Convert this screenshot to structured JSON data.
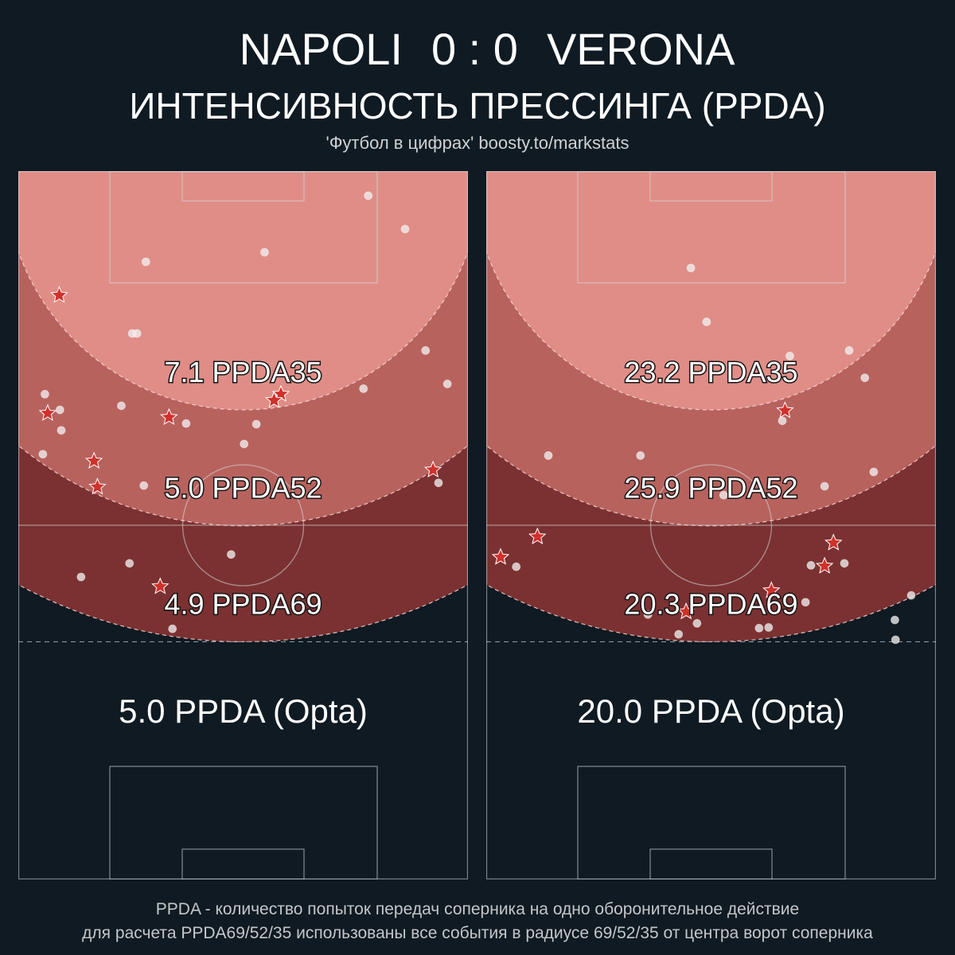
{
  "header": {
    "home_team": "NAPOLI",
    "score": "0 : 0",
    "away_team": "VERONA",
    "title": "ИНТЕНСИВНОСТЬ ПРЕССИНГА (PPDA)",
    "source": "'Футбол в цифрах' boosty.to/markstats"
  },
  "colors": {
    "background": "#0f1a22",
    "zones": [
      "#e08d87",
      "#b8625e",
      "#7b3131"
    ],
    "star": "#cf312b",
    "dot": "#f0f0f0",
    "text": "#ffffff",
    "muted_text": "#c4c7c9"
  },
  "chart_data": [
    {
      "type": "scatter",
      "zones": [
        {
          "radius": 35,
          "ppda": 7.1,
          "label": "7.1 PPDA35"
        },
        {
          "radius": 52,
          "ppda": 5.0,
          "label": "5.0 PPDA52"
        },
        {
          "radius": 69,
          "ppda": 4.9,
          "label": "4.9 PPDA69"
        }
      ],
      "opta_ppda": 5.0,
      "opta_label": "5.0 PPDA (Opta)",
      "dots": [
        [
          51.3,
          3.6
        ],
        [
          56.7,
          8.5
        ],
        [
          36.1,
          11.9
        ],
        [
          18.7,
          13.3
        ],
        [
          16.7,
          23.8
        ],
        [
          17.4,
          23.8
        ],
        [
          59.7,
          26.3
        ],
        [
          50.6,
          31.9
        ],
        [
          62.9,
          31.2
        ],
        [
          3.9,
          32.7
        ],
        [
          6.1,
          35.0
        ],
        [
          15.1,
          34.4
        ],
        [
          24.6,
          37.0
        ],
        [
          34.9,
          37.1
        ],
        [
          6.3,
          38.0
        ],
        [
          33.1,
          40.0
        ],
        [
          3.6,
          41.5
        ],
        [
          18.4,
          46.1
        ],
        [
          61.6,
          45.7
        ],
        [
          31.2,
          56.2
        ],
        [
          16.3,
          57.5
        ],
        [
          9.2,
          59.5
        ],
        [
          22.6,
          67.1
        ]
      ],
      "stars": [
        [
          6.0,
          18.2
        ],
        [
          4.3,
          35.5
        ],
        [
          22.1,
          36.1
        ],
        [
          38.5,
          32.7
        ],
        [
          37.5,
          33.6
        ],
        [
          11.1,
          42.5
        ],
        [
          11.6,
          46.3
        ],
        [
          60.8,
          43.8
        ],
        [
          20.8,
          60.9
        ]
      ]
    },
    {
      "type": "scatter",
      "zones": [
        {
          "radius": 35,
          "ppda": 23.2,
          "label": "23.2 PPDA35"
        },
        {
          "radius": 52,
          "ppda": 25.9,
          "label": "25.9 PPDA52"
        },
        {
          "radius": 69,
          "ppda": 20.3,
          "label": "20.3 PPDA69"
        }
      ],
      "opta_ppda": 20.0,
      "opta_label": "20.0 PPDA (Opta)",
      "dots": [
        [
          30.0,
          14.2
        ],
        [
          32.3,
          22.1
        ],
        [
          44.5,
          27.1
        ],
        [
          53.2,
          26.3
        ],
        [
          55.5,
          30.3
        ],
        [
          43.4,
          36.6
        ],
        [
          9.1,
          41.7
        ],
        [
          22.6,
          41.7
        ],
        [
          56.8,
          44.1
        ],
        [
          49.6,
          46.2
        ],
        [
          34.8,
          47.5
        ],
        [
          4.4,
          58.0
        ],
        [
          47.6,
          57.8
        ],
        [
          52.5,
          57.5
        ],
        [
          62.3,
          62.2
        ],
        [
          59.9,
          65.8
        ],
        [
          60.0,
          68.7
        ],
        [
          28.2,
          67.9
        ],
        [
          30.9,
          66.3
        ],
        [
          40.0,
          67.0
        ],
        [
          41.4,
          66.9
        ],
        [
          23.7,
          65.0
        ],
        [
          46.8,
          63.2
        ]
      ],
      "stars": [
        [
          43.8,
          35.1
        ],
        [
          7.5,
          53.6
        ],
        [
          2.1,
          56.6
        ],
        [
          50.9,
          54.5
        ],
        [
          49.6,
          57.9
        ],
        [
          41.8,
          61.5
        ],
        [
          29.3,
          64.6
        ]
      ]
    }
  ],
  "footer": {
    "line1": "PPDA - количество попыток передач соперника на одно оборонительное действие",
    "line2": "для расчета PPDA69/52/35 использованы все события в радиусе 69/52/35 от центра ворот соперника"
  }
}
